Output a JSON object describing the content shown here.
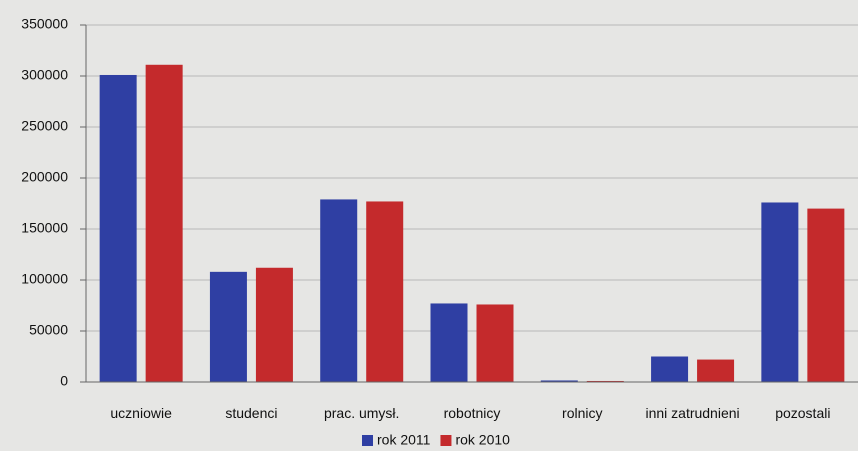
{
  "chart_data": {
    "type": "bar",
    "categories": [
      "uczniowie",
      "studenci",
      "prac. umysł.",
      "robotnicy",
      "rolnicy",
      "inni zatrudnieni",
      "pozostali"
    ],
    "series": [
      {
        "name": "rok 2011",
        "color": "#2f3fa3",
        "values": [
          301000,
          108000,
          179000,
          77000,
          1500,
          25000,
          176000
        ]
      },
      {
        "name": "rok 2010",
        "color": "#c42a2c",
        "values": [
          311000,
          112000,
          177000,
          76000,
          1000,
          22000,
          170000
        ]
      }
    ],
    "ylim": [
      0,
      350000
    ],
    "yticks": [
      0,
      50000,
      100000,
      150000,
      200000,
      250000,
      300000,
      350000
    ],
    "grid": true,
    "legend": "bottom"
  }
}
